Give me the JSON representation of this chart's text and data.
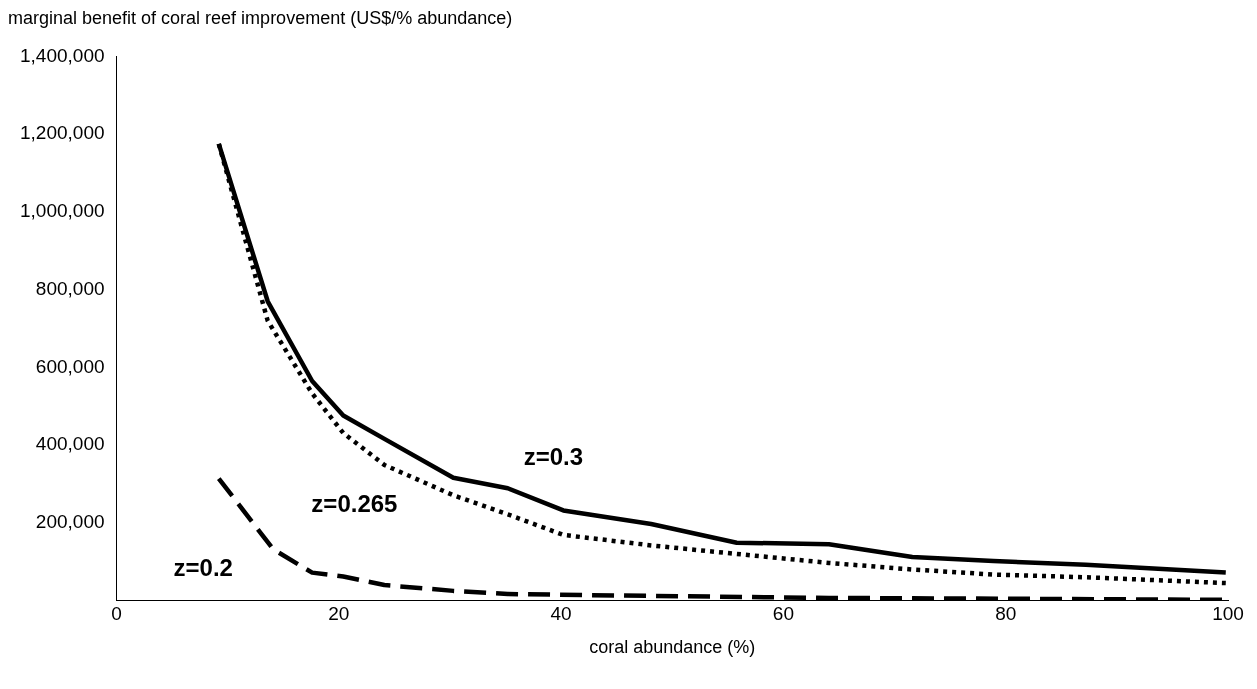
{
  "chart_data": {
    "type": "line",
    "xlabel": "coral abundance (%)",
    "ylabel": "marginal benefit of coral reef improvement (US$/% abundance)",
    "xlim": [
      0,
      100
    ],
    "xticks": [
      0,
      20,
      40,
      60,
      80,
      100
    ],
    "ylim": [
      0,
      1400000
    ],
    "yticks": [
      {
        "value": 200000,
        "label": "200,000"
      },
      {
        "value": 400000,
        "label": "400,000"
      },
      {
        "value": 600000,
        "label": "600,000"
      },
      {
        "value": 800000,
        "label": "800,000"
      },
      {
        "value": 1000000,
        "label": "1,000,000"
      },
      {
        "value": 1200000,
        "label": "1,200,000"
      },
      {
        "value": 1400000,
        "label": "1,400,000"
      }
    ],
    "grid": false,
    "legend": false,
    "marker": "none",
    "series": [
      {
        "name": "z=0.3",
        "color": "#000000",
        "line_style": "solid",
        "x": [
          9.2,
          13.6,
          17.6,
          20.4,
          24.1,
          30.3,
          35.2,
          40.2,
          48.1,
          55.8,
          64.1,
          71.6,
          78.9,
          87.2,
          99.8
        ],
        "values": [
          1175000,
          770000,
          565000,
          476000,
          416000,
          316000,
          289000,
          232000,
          197000,
          149000,
          145000,
          112000,
          102000,
          92000,
          72000
        ]
      },
      {
        "name": "z=0.265",
        "color": "#000000",
        "line_style": "dotted",
        "x": [
          9.2,
          13.6,
          17.6,
          20.4,
          24.1,
          30.3,
          35.2,
          40.2,
          48.1,
          55.8,
          64.1,
          71.6,
          78.9,
          87.2,
          99.8
        ],
        "values": [
          1175000,
          720000,
          533000,
          431000,
          349000,
          271000,
          222000,
          169000,
          142000,
          120000,
          97000,
          80000,
          67000,
          60000,
          45000
        ]
      },
      {
        "name": "z=0.2",
        "color": "#000000",
        "line_style": "dashed",
        "x": [
          9.2,
          14.1,
          17.6,
          20.4,
          24.1,
          30.3,
          35.2,
          48.1,
          64.1,
          99.8
        ],
        "values": [
          314000,
          132000,
          72000,
          62000,
          40000,
          25000,
          17000,
          12000,
          7000,
          2000
        ]
      }
    ]
  }
}
